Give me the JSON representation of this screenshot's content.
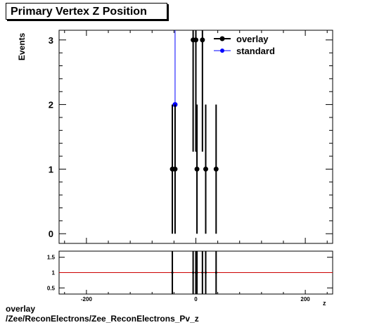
{
  "title": "Primary Vertex Z Position",
  "ylabel": "Events",
  "footer": {
    "line1": "overlay",
    "line2": "/Zee/ReconElectrons/Zee_ReconElectrons_Pv_z"
  },
  "colors": {
    "overlay": "#000000",
    "standard": "#0000ff",
    "ratio_line": "#cc0000"
  },
  "chart_data": [
    {
      "type": "scatter",
      "title": "Primary Vertex Z Position",
      "xlabel": "z",
      "ylabel": "Events",
      "xlim": [
        -250,
        250
      ],
      "ylim": [
        -0.15,
        3.15
      ],
      "yticks": [
        0,
        1,
        2,
        3
      ],
      "legend": "top-right",
      "series": [
        {
          "name": "overlay",
          "x": [
            -43,
            -38,
            -5,
            0,
            2,
            12,
            18,
            37
          ],
          "y": [
            1,
            1,
            3,
            3,
            1,
            3,
            1,
            1
          ],
          "err": [
            1,
            1,
            1.73,
            1.73,
            1,
            1.73,
            1,
            1
          ]
        },
        {
          "name": "standard",
          "x": [
            -38
          ],
          "y": [
            2
          ],
          "err": [
            1.41
          ]
        }
      ]
    },
    {
      "type": "scatter",
      "xlim": [
        -250,
        250
      ],
      "ylim": [
        0.3,
        1.7
      ],
      "yticks": [
        0.5,
        1,
        1.5
      ],
      "xticks": [
        -200,
        0,
        200
      ],
      "reference_line": 1,
      "points_x": [
        -43,
        -5,
        0,
        2,
        12,
        18,
        37
      ],
      "points_y": [
        1,
        1,
        1,
        1,
        1,
        1,
        1
      ]
    }
  ]
}
